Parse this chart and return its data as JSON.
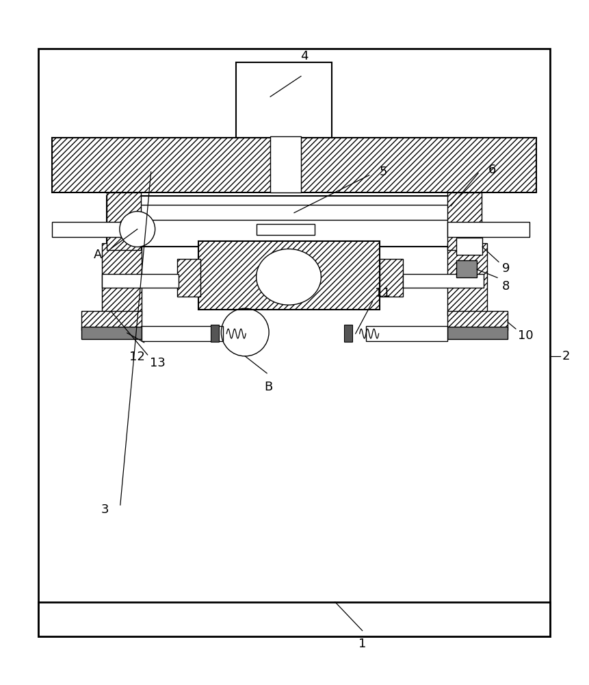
{
  "bg_color": "#ffffff",
  "line_color": "#000000",
  "fig_width": 8.61,
  "fig_height": 10.0
}
